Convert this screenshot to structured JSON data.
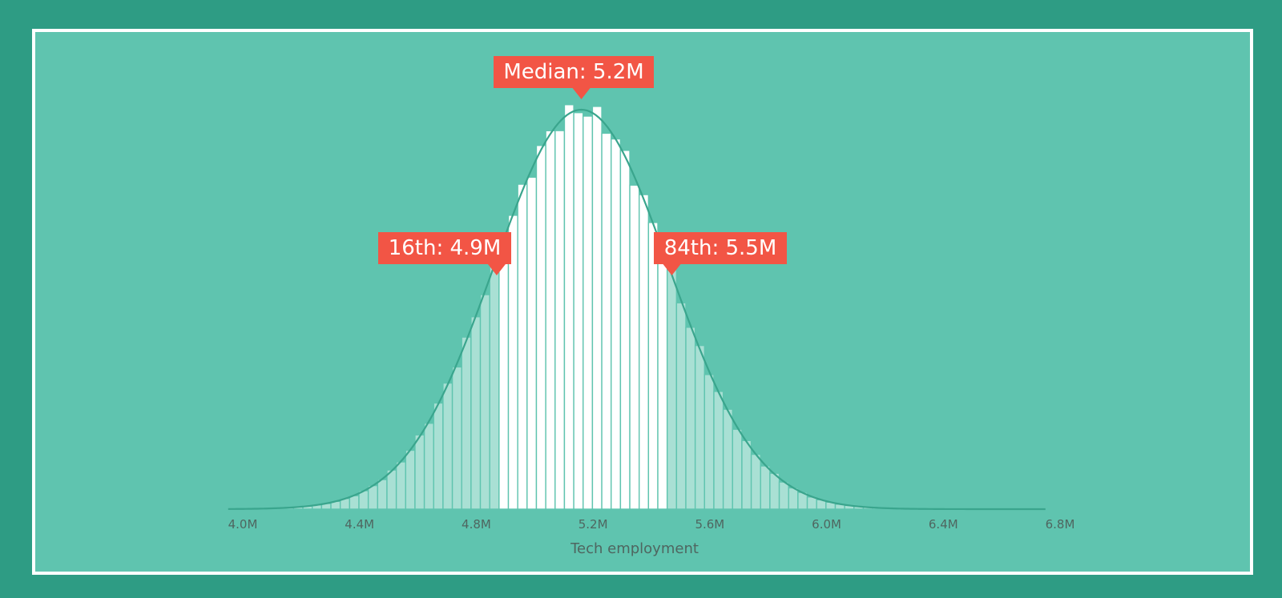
{
  "colors": {
    "background": "#2e9c84",
    "panel": "#5fc4af",
    "border": "#ffffff",
    "bar_inner": "#ffffff",
    "bar_outer": "#a9e0d4",
    "curve": "#3aa58d",
    "callout": "#f25545",
    "callout_text": "#ffffff",
    "tick_text": "#4f6660"
  },
  "chart_data": {
    "type": "bar",
    "subtype": "histogram-with-density",
    "xlabel": "Tech employment",
    "xlim": [
      4.0,
      6.8
    ],
    "x_ticks": [
      4.0,
      4.4,
      4.8,
      5.2,
      5.6,
      6.0,
      6.4,
      6.8
    ],
    "x_tick_labels": [
      "4.0M",
      "4.4M",
      "4.8M",
      "5.2M",
      "5.6M",
      "6.0M",
      "6.4M",
      "6.8M"
    ],
    "distribution": {
      "mean": 5.16,
      "sd": 0.3,
      "bin_width": 0.032,
      "support": [
        3.95,
        6.75
      ]
    },
    "highlight_range": [
      4.88,
      5.46
    ],
    "annotations": [
      {
        "id": "median",
        "label": "Median: 5.2M",
        "x": 5.16
      },
      {
        "id": "p16",
        "label": "16th: 4.9M",
        "x": 4.87
      },
      {
        "id": "p84",
        "label": "84th: 5.5M",
        "x": 5.47
      }
    ]
  }
}
